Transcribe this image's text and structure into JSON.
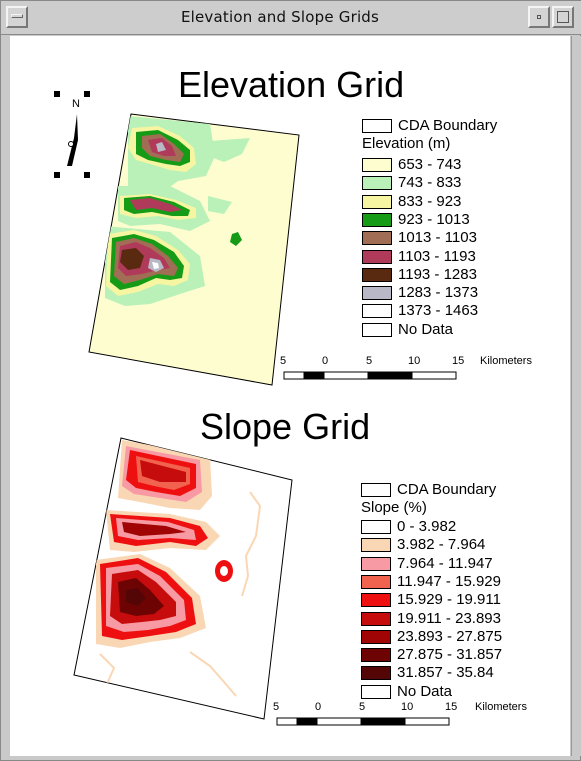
{
  "window": {
    "title": "Elevation and Slope Grids"
  },
  "elevation": {
    "title": "Elevation Grid",
    "boundary_label": "CDA Boundary",
    "legend_title": "Elevation (m)",
    "classes": [
      {
        "label": "653 - 743",
        "color": "#fdfdd0"
      },
      {
        "label": "743 - 833",
        "color": "#b9f1b9"
      },
      {
        "label": "833 - 923",
        "color": "#f6f5a2"
      },
      {
        "label": "923 - 1013",
        "color": "#169b16"
      },
      {
        "label": "1013 - 1103",
        "color": "#a16e55"
      },
      {
        "label": "1103 - 1193",
        "color": "#b03a5a"
      },
      {
        "label": "1193 - 1283",
        "color": "#5a2a10"
      },
      {
        "label": "1283 - 1373",
        "color": "#b9b8c6"
      },
      {
        "label": "1373 - 1463",
        "color": "#ffffff"
      },
      {
        "label": "No Data",
        "color": "#ffffff"
      }
    ],
    "scale_ticks": [
      "5",
      "0",
      "5",
      "10",
      "15"
    ],
    "scale_unit": "Kilometers",
    "north_label": "N"
  },
  "slope": {
    "title": "Slope Grid",
    "boundary_label": "CDA Boundary",
    "legend_title": "Slope (%)",
    "classes": [
      {
        "label": "0 - 3.982",
        "color": "#ffffff"
      },
      {
        "label": "3.982 - 7.964",
        "color": "#fad7b4"
      },
      {
        "label": "7.964 - 11.947",
        "color": "#f79aa3"
      },
      {
        "label": "11.947 - 15.929",
        "color": "#f2634f"
      },
      {
        "label": "15.929 - 19.911",
        "color": "#ee1010"
      },
      {
        "label": "19.911 - 23.893",
        "color": "#c60c0c"
      },
      {
        "label": "23.893 - 27.875",
        "color": "#a00404"
      },
      {
        "label": "27.875 - 31.857",
        "color": "#6e0303"
      },
      {
        "label": "31.857 - 35.84",
        "color": "#540606"
      },
      {
        "label": "No Data",
        "color": "#ffffff"
      }
    ],
    "scale_ticks": [
      "5",
      "0",
      "5",
      "10",
      "15"
    ],
    "scale_unit": "Kilometers"
  }
}
